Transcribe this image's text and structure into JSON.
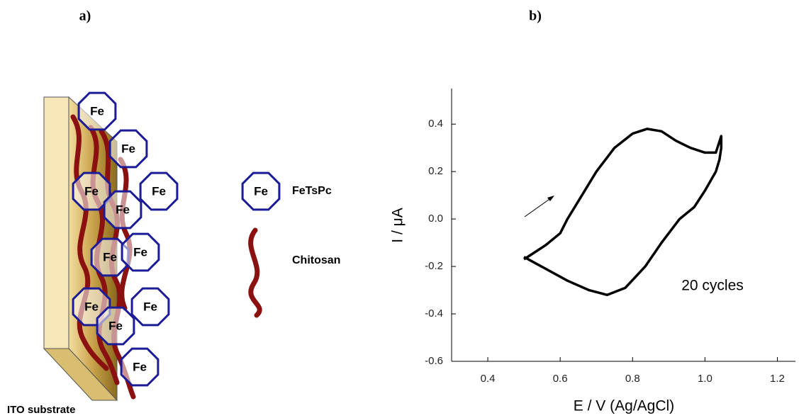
{
  "panels": [
    "a)",
    "b)"
  ],
  "diagram": {
    "substrate_label": "ITO substrate",
    "node_labels": [
      "Fe",
      "Fe",
      "Fe",
      "Fe",
      "Fe",
      "Fe",
      "Fe",
      "Fe",
      "Fe",
      "Fe",
      "Fe"
    ],
    "legend": [
      {
        "symbol": "Fe",
        "label": "FeTsPc"
      },
      {
        "label": "Chitosan"
      }
    ]
  },
  "chart_data": {
    "type": "line",
    "x_label": "E / V (Ag/AgCl)",
    "y_label": "I / μA",
    "annotation": "20 cycles",
    "color": "#000000",
    "x": [
      0.5,
      0.53,
      0.56,
      0.6,
      0.62,
      0.66,
      0.7,
      0.75,
      0.8,
      0.84,
      0.88,
      0.92,
      0.96,
      1.0,
      1.03,
      1.045,
      1.045,
      1.04,
      1.03,
      1.0,
      0.97,
      0.93,
      0.88,
      0.835,
      0.78,
      0.73,
      0.68,
      0.62,
      0.56,
      0.5
    ],
    "values": [
      -0.17,
      -0.14,
      -0.11,
      -0.06,
      0,
      0.1,
      0.2,
      0.3,
      0.36,
      0.38,
      0.37,
      0.33,
      0.3,
      0.28,
      0.28,
      0.35,
      0.3,
      0.25,
      0.2,
      0.12,
      0.05,
      0,
      -0.1,
      -0.2,
      -0.29,
      -0.32,
      -0.3,
      -0.26,
      -0.21,
      -0.16
    ],
    "xlim": [
      0.3,
      1.25
    ],
    "ylim": [
      -0.6,
      0.55
    ],
    "xticks": [
      0.4,
      0.6,
      0.8,
      {
        "value": 1,
        "label": "1.0"
      },
      1.2
    ],
    "yticks": [
      -0.6,
      -0.4,
      -0.2,
      {
        "value": 0,
        "label": "0.0"
      },
      0.2,
      0.4
    ]
  }
}
